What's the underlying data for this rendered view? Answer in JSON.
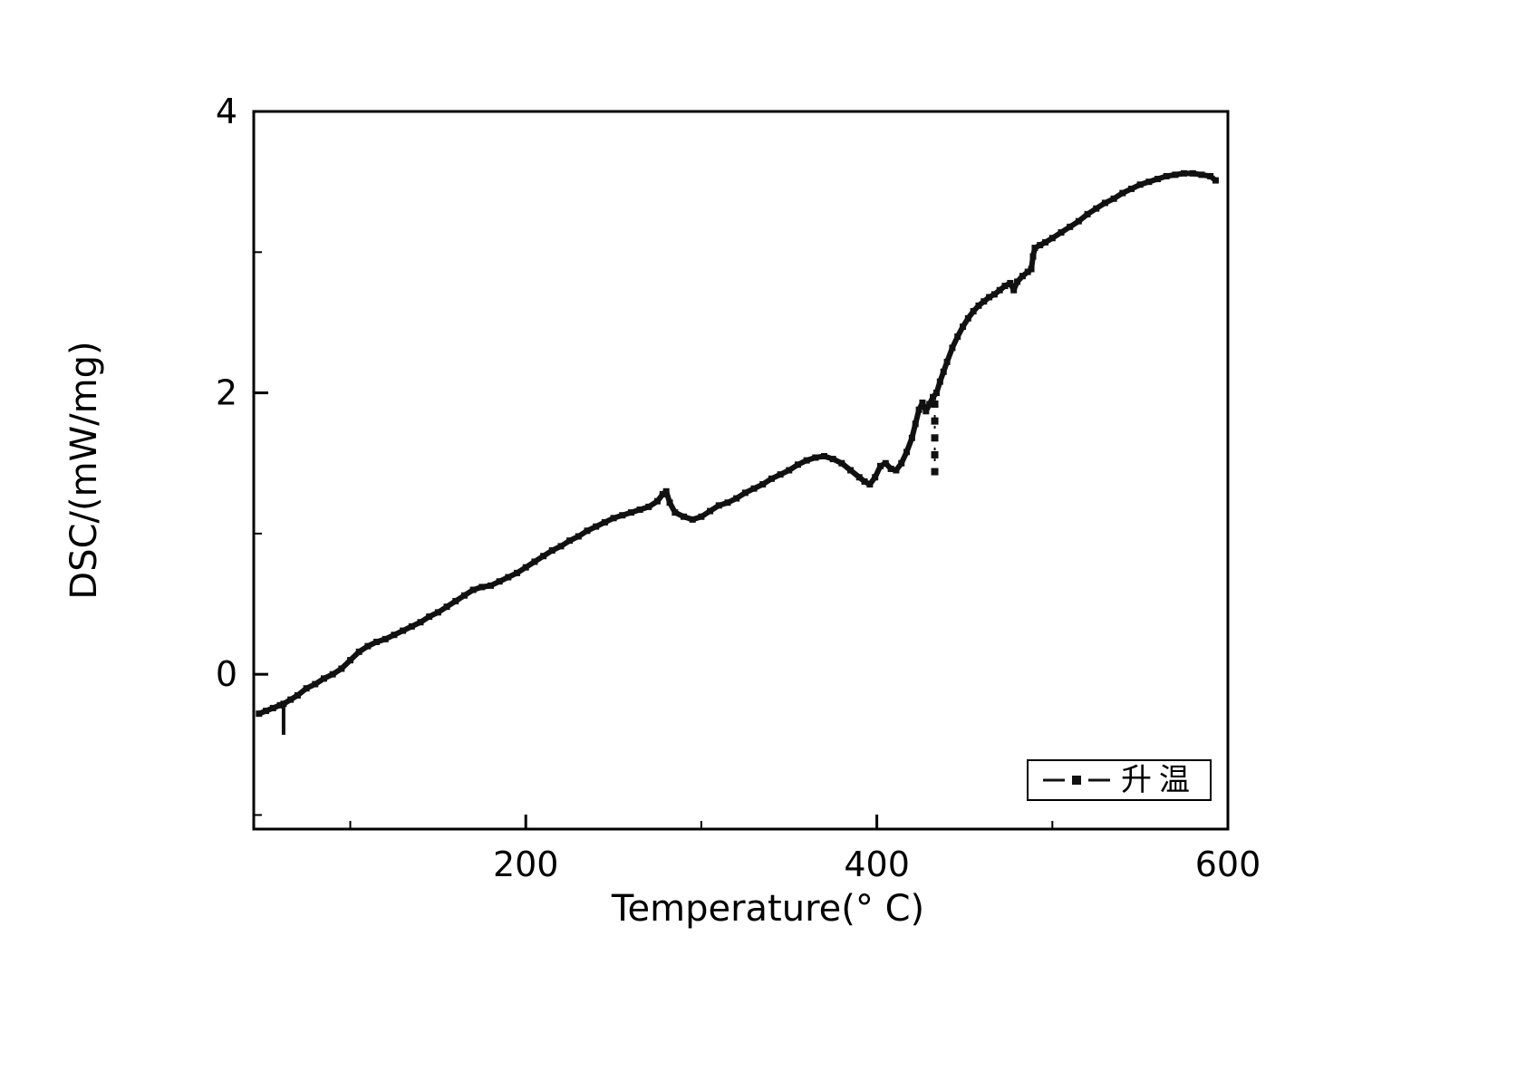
{
  "figure": {
    "title": "",
    "xlabel": "Temperature(° C)",
    "ylabel": "DSC/(mW/mg)",
    "legend": {
      "label": "升温",
      "marker": "square",
      "line_color": "#111111"
    },
    "background": "#ffffff",
    "curve_color": "#111111"
  },
  "chart_data": {
    "type": "line",
    "title": "",
    "xlabel": "Temperature(° C)",
    "ylabel": "DSC/(mW/mg)",
    "xlim": [
      45,
      600
    ],
    "ylim": [
      -1.1,
      4.0
    ],
    "grid": false,
    "legend_position": "lower right inside",
    "xticks": [
      {
        "v": 200,
        "label": "200"
      },
      {
        "v": 400,
        "label": "400"
      },
      {
        "v": 600,
        "label": "600"
      }
    ],
    "xticks_minor": [
      100,
      300,
      500
    ],
    "yticks": [
      {
        "v": 0,
        "label": "0"
      },
      {
        "v": 2,
        "label": "2"
      },
      {
        "v": 4,
        "label": "4"
      }
    ],
    "yticks_minor": [
      -1,
      1,
      3
    ],
    "series": [
      {
        "name": "升温",
        "color": "#111111",
        "marker": "square",
        "points": [
          [
            48,
            -0.28
          ],
          [
            52,
            -0.26
          ],
          [
            56,
            -0.24
          ],
          [
            60,
            -0.22
          ],
          [
            62,
            -0.21
          ],
          [
            66,
            -0.18
          ],
          [
            70,
            -0.15
          ],
          [
            75,
            -0.1
          ],
          [
            80,
            -0.07
          ],
          [
            85,
            -0.03
          ],
          [
            90,
            0.0
          ],
          [
            95,
            0.04
          ],
          [
            100,
            0.1
          ],
          [
            105,
            0.16
          ],
          [
            110,
            0.2
          ],
          [
            115,
            0.23
          ],
          [
            120,
            0.25
          ],
          [
            125,
            0.28
          ],
          [
            130,
            0.31
          ],
          [
            135,
            0.34
          ],
          [
            140,
            0.37
          ],
          [
            145,
            0.41
          ],
          [
            150,
            0.44
          ],
          [
            155,
            0.48
          ],
          [
            160,
            0.52
          ],
          [
            165,
            0.56
          ],
          [
            170,
            0.6
          ],
          [
            175,
            0.62
          ],
          [
            180,
            0.63
          ],
          [
            185,
            0.66
          ],
          [
            190,
            0.69
          ],
          [
            195,
            0.72
          ],
          [
            200,
            0.76
          ],
          [
            205,
            0.8
          ],
          [
            210,
            0.84
          ],
          [
            215,
            0.88
          ],
          [
            220,
            0.91
          ],
          [
            225,
            0.95
          ],
          [
            230,
            0.98
          ],
          [
            235,
            1.02
          ],
          [
            240,
            1.05
          ],
          [
            245,
            1.08
          ],
          [
            250,
            1.11
          ],
          [
            255,
            1.13
          ],
          [
            260,
            1.15
          ],
          [
            265,
            1.17
          ],
          [
            270,
            1.19
          ],
          [
            275,
            1.23
          ],
          [
            278,
            1.28
          ],
          [
            280,
            1.3
          ],
          [
            282,
            1.22
          ],
          [
            285,
            1.15
          ],
          [
            290,
            1.12
          ],
          [
            295,
            1.1
          ],
          [
            300,
            1.12
          ],
          [
            305,
            1.16
          ],
          [
            310,
            1.2
          ],
          [
            315,
            1.22
          ],
          [
            320,
            1.25
          ],
          [
            325,
            1.29
          ],
          [
            330,
            1.32
          ],
          [
            335,
            1.35
          ],
          [
            340,
            1.39
          ],
          [
            345,
            1.42
          ],
          [
            350,
            1.45
          ],
          [
            355,
            1.49
          ],
          [
            360,
            1.52
          ],
          [
            365,
            1.54
          ],
          [
            370,
            1.55
          ],
          [
            375,
            1.53
          ],
          [
            380,
            1.5
          ],
          [
            385,
            1.45
          ],
          [
            390,
            1.4
          ],
          [
            393,
            1.37
          ],
          [
            396,
            1.35
          ],
          [
            399,
            1.4
          ],
          [
            402,
            1.48
          ],
          [
            405,
            1.5
          ],
          [
            408,
            1.46
          ],
          [
            411,
            1.45
          ],
          [
            414,
            1.5
          ],
          [
            417,
            1.58
          ],
          [
            420,
            1.68
          ],
          [
            422,
            1.78
          ],
          [
            424,
            1.88
          ],
          [
            426,
            1.93
          ],
          [
            428,
            1.87
          ],
          [
            430,
            1.92
          ],
          [
            432,
            1.97
          ],
          [
            434,
            2.0
          ],
          [
            436,
            2.08
          ],
          [
            438,
            2.15
          ],
          [
            440,
            2.22
          ],
          [
            443,
            2.32
          ],
          [
            446,
            2.4
          ],
          [
            449,
            2.47
          ],
          [
            452,
            2.53
          ],
          [
            455,
            2.58
          ],
          [
            458,
            2.62
          ],
          [
            461,
            2.65
          ],
          [
            464,
            2.68
          ],
          [
            467,
            2.7
          ],
          [
            470,
            2.73
          ],
          [
            473,
            2.76
          ],
          [
            476,
            2.78
          ],
          [
            478,
            2.73
          ],
          [
            480,
            2.79
          ],
          [
            483,
            2.83
          ],
          [
            486,
            2.86
          ],
          [
            488,
            2.88
          ],
          [
            489,
            2.97
          ],
          [
            490,
            3.03
          ],
          [
            493,
            3.05
          ],
          [
            496,
            3.07
          ],
          [
            500,
            3.1
          ],
          [
            505,
            3.14
          ],
          [
            510,
            3.18
          ],
          [
            515,
            3.22
          ],
          [
            520,
            3.27
          ],
          [
            525,
            3.31
          ],
          [
            530,
            3.35
          ],
          [
            535,
            3.38
          ],
          [
            540,
            3.42
          ],
          [
            545,
            3.45
          ],
          [
            550,
            3.48
          ],
          [
            555,
            3.5
          ],
          [
            560,
            3.52
          ],
          [
            565,
            3.54
          ],
          [
            570,
            3.55
          ],
          [
            575,
            3.56
          ],
          [
            580,
            3.56
          ],
          [
            585,
            3.55
          ],
          [
            590,
            3.54
          ],
          [
            593,
            3.51
          ]
        ]
      }
    ],
    "annotations": {
      "dashed_drop_spike": {
        "description": "dashed marker spike hanging below curve near 433 °C",
        "points": [
          [
            433,
            1.92
          ],
          [
            433,
            1.8
          ],
          [
            433,
            1.68
          ],
          [
            433,
            1.56
          ],
          [
            433,
            1.44
          ]
        ]
      },
      "solid_start_spike": {
        "description": "thin downward spike near 62 °C",
        "points": [
          [
            62,
            -0.2
          ],
          [
            62,
            -0.43
          ]
        ]
      }
    }
  }
}
